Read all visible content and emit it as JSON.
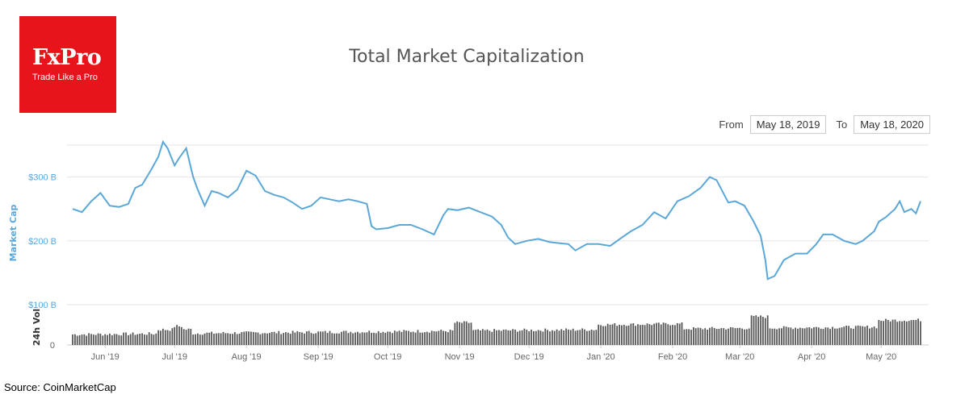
{
  "logo": {
    "name": "FxPro",
    "tagline": "Trade Like a Pro"
  },
  "range": {
    "from_label": "From",
    "from_value": "May 18, 2019",
    "to_label": "To",
    "to_value": "May 18, 2020"
  },
  "source": "Source: CoinMarketCap",
  "colors": {
    "line": "#5aa7d8",
    "volume": "#555555",
    "grid": "#e6e6e6",
    "brand": "#e8141b"
  },
  "chart_data": {
    "type": "line",
    "title": "Total Market Capitalization",
    "ylabel": "Market Cap",
    "volume_label": "24h Vol",
    "ylim": [
      100,
      350
    ],
    "yticks": [
      100,
      200,
      300
    ],
    "ytick_labels": [
      "$100 B",
      "$200 B",
      "$300 B"
    ],
    "volume_tick_label": "0",
    "x_tick_labels": [
      "Jun '19",
      "Jul '19",
      "Aug '19",
      "Sep '19",
      "Oct '19",
      "Nov '19",
      "Dec '19",
      "Jan '20",
      "Feb '20",
      "Mar '20",
      "Apr '20",
      "May '20"
    ],
    "x_tick_dates": [
      "2019-06-01",
      "2019-07-01",
      "2019-08-01",
      "2019-09-01",
      "2019-10-01",
      "2019-11-01",
      "2019-12-01",
      "2020-01-01",
      "2020-02-01",
      "2020-03-01",
      "2020-04-01",
      "2020-05-01"
    ],
    "x_range": [
      "2019-05-18",
      "2020-05-18"
    ],
    "series": [
      {
        "dates": [
          "2019-05-18",
          "2019-05-22",
          "2019-05-26",
          "2019-05-30",
          "2019-06-03",
          "2019-06-07",
          "2019-06-11",
          "2019-06-14",
          "2019-06-17",
          "2019-06-21",
          "2019-06-24",
          "2019-06-26",
          "2019-06-28",
          "2019-07-01",
          "2019-07-03",
          "2019-07-06",
          "2019-07-09",
          "2019-07-11",
          "2019-07-14",
          "2019-07-17",
          "2019-07-20",
          "2019-07-24",
          "2019-07-28",
          "2019-08-01",
          "2019-08-05",
          "2019-08-09",
          "2019-08-13",
          "2019-08-17",
          "2019-08-21",
          "2019-08-25",
          "2019-08-29",
          "2019-09-02",
          "2019-09-06",
          "2019-09-10",
          "2019-09-14",
          "2019-09-18",
          "2019-09-22",
          "2019-09-24",
          "2019-09-26",
          "2019-10-01",
          "2019-10-06",
          "2019-10-11",
          "2019-10-16",
          "2019-10-21",
          "2019-10-25",
          "2019-10-27",
          "2019-10-31",
          "2019-11-05",
          "2019-11-10",
          "2019-11-15",
          "2019-11-19",
          "2019-11-22",
          "2019-11-25",
          "2019-11-30",
          "2019-12-05",
          "2019-12-10",
          "2019-12-15",
          "2019-12-18",
          "2019-12-21",
          "2019-12-26",
          "2019-12-31",
          "2020-01-05",
          "2020-01-10",
          "2020-01-14",
          "2020-01-19",
          "2020-01-24",
          "2020-01-29",
          "2020-02-03",
          "2020-02-08",
          "2020-02-13",
          "2020-02-17",
          "2020-02-20",
          "2020-02-25",
          "2020-02-28",
          "2020-03-03",
          "2020-03-07",
          "2020-03-10",
          "2020-03-12",
          "2020-03-13",
          "2020-03-16",
          "2020-03-20",
          "2020-03-25",
          "2020-03-30",
          "2020-04-03",
          "2020-04-06",
          "2020-04-10",
          "2020-04-15",
          "2020-04-20",
          "2020-04-23",
          "2020-04-28",
          "2020-04-30",
          "2020-05-03",
          "2020-05-07",
          "2020-05-09",
          "2020-05-11",
          "2020-05-14",
          "2020-05-16",
          "2020-05-18"
        ],
        "values": [
          250,
          245,
          262,
          275,
          255,
          253,
          258,
          283,
          288,
          312,
          332,
          355,
          345,
          318,
          330,
          345,
          300,
          280,
          255,
          278,
          275,
          268,
          280,
          310,
          302,
          278,
          272,
          268,
          260,
          250,
          255,
          268,
          265,
          262,
          265,
          262,
          258,
          223,
          218,
          220,
          225,
          225,
          218,
          210,
          240,
          250,
          248,
          252,
          245,
          238,
          225,
          205,
          195,
          200,
          203,
          198,
          196,
          195,
          185,
          195,
          195,
          192,
          205,
          215,
          225,
          245,
          235,
          262,
          270,
          283,
          300,
          295,
          260,
          262,
          255,
          230,
          208,
          170,
          140,
          145,
          170,
          180,
          180,
          195,
          210,
          210,
          200,
          195,
          200,
          215,
          230,
          237,
          250,
          262,
          245,
          250,
          243,
          262
        ]
      }
    ],
    "volume": {
      "relative_scale": true,
      "start_date": "2019-05-18",
      "values_daily": "generated"
    }
  }
}
